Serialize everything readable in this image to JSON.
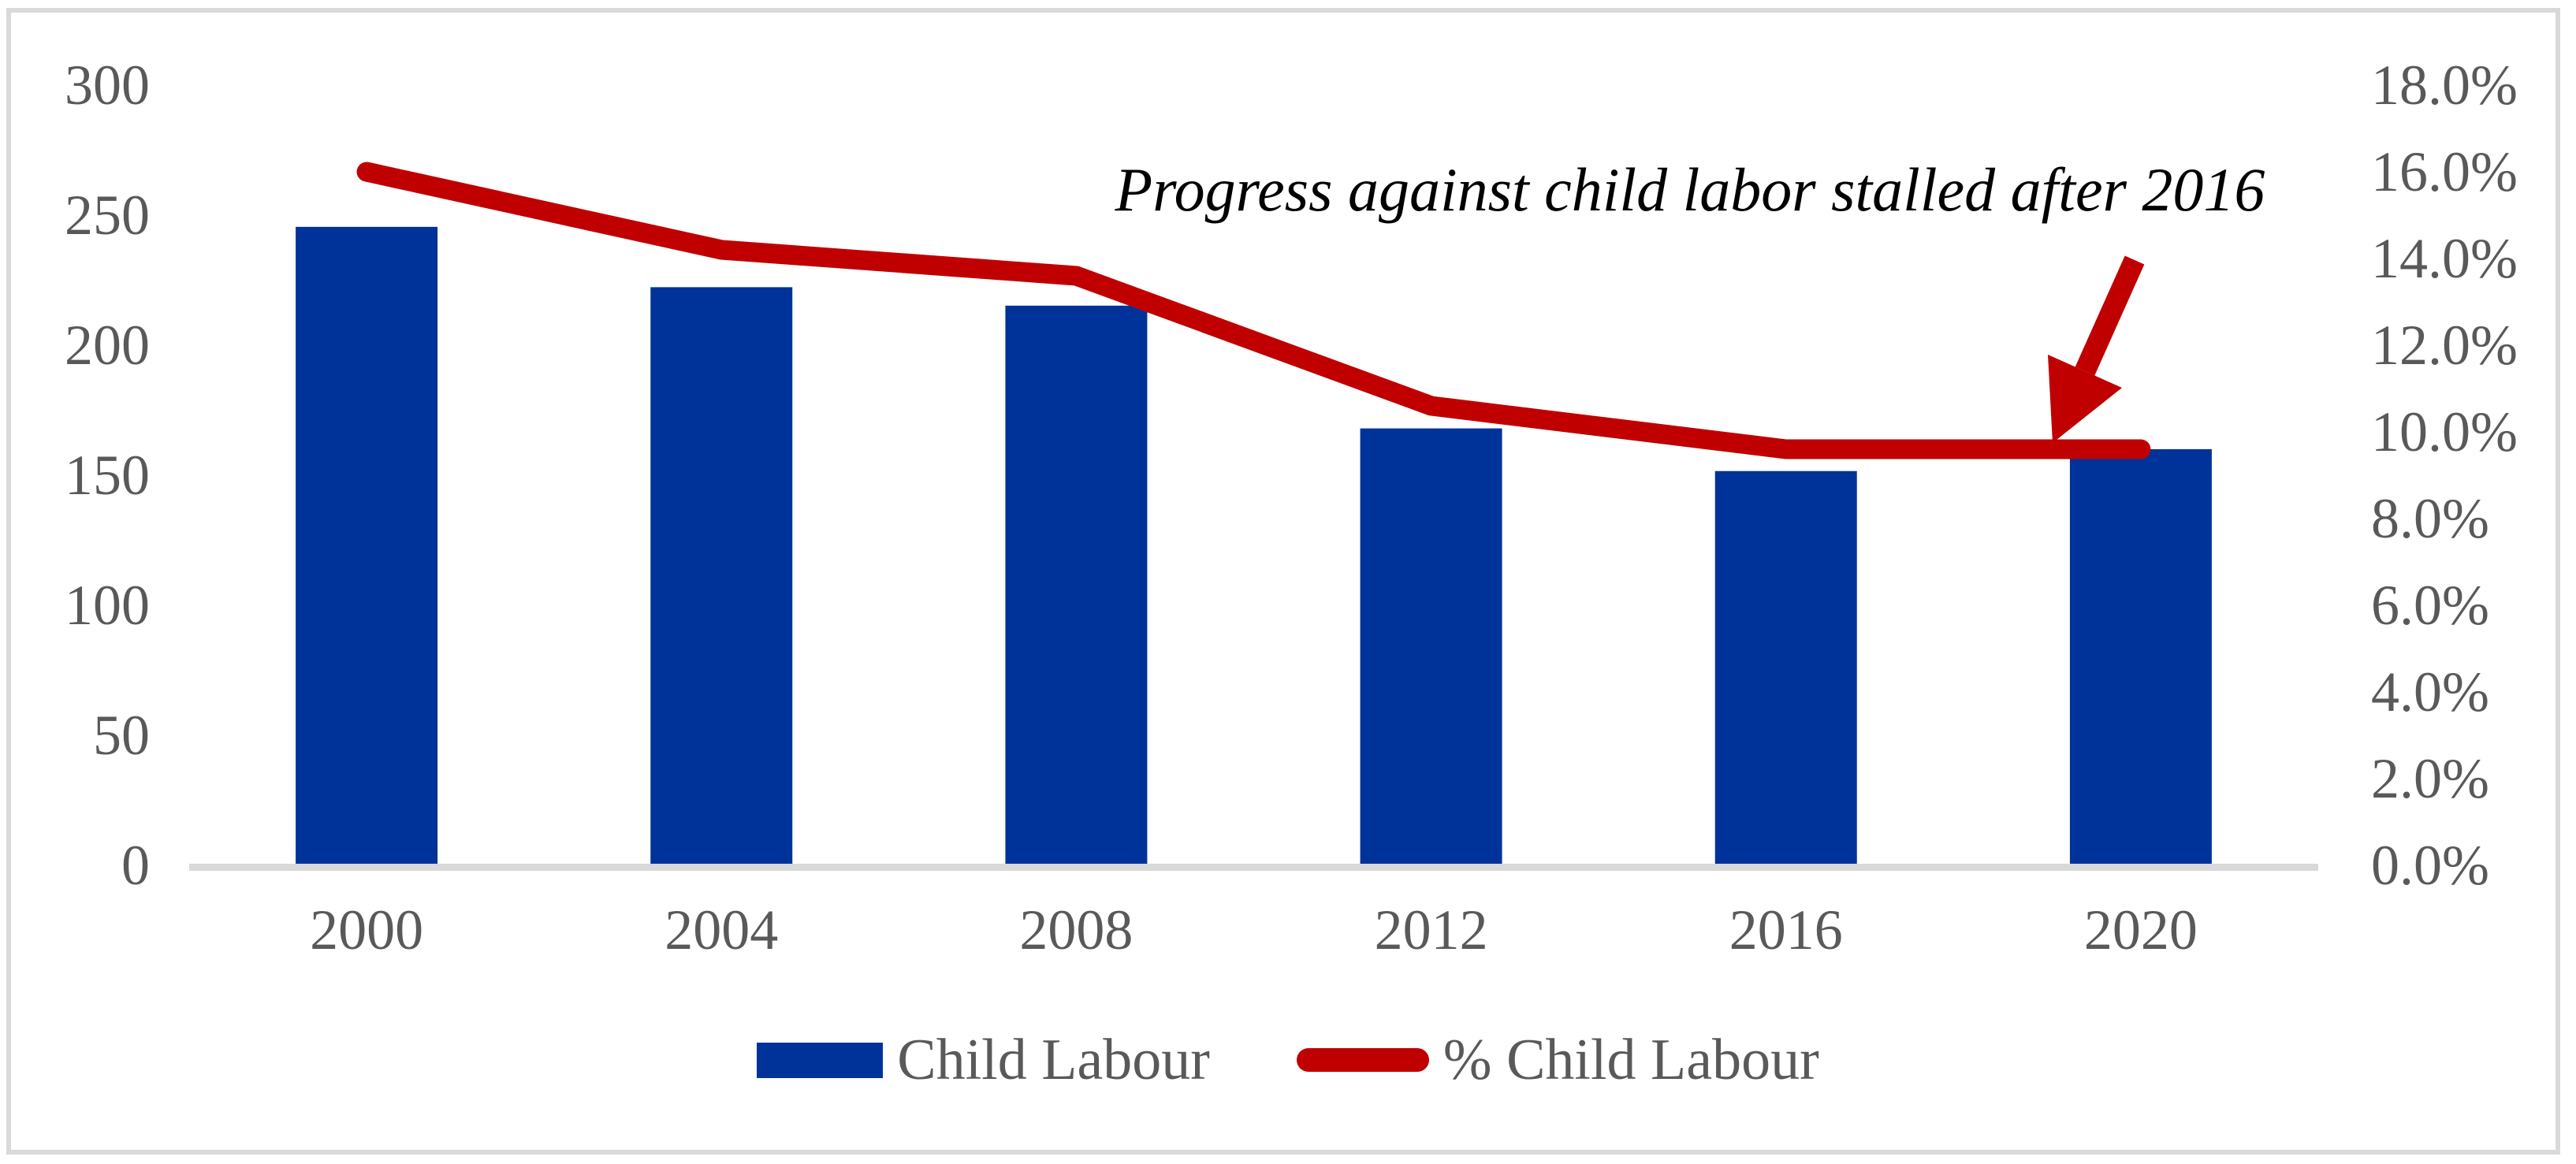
{
  "chart_data": {
    "type": "bar+line combo",
    "categories": [
      "2000",
      "2004",
      "2008",
      "2012",
      "2016",
      "2020"
    ],
    "series": [
      {
        "name": "Child Labour",
        "type": "bar",
        "axis": "left",
        "values": [
          245.5,
          222.3,
          215.2,
          168,
          151.6,
          160
        ]
      },
      {
        "name": "% Child Labour",
        "type": "line",
        "axis": "right",
        "values": [
          16.0,
          14.2,
          13.6,
          10.6,
          9.6,
          9.6
        ]
      }
    ],
    "left_axis": {
      "min": 0,
      "max": 300,
      "ticks": [
        {
          "label": "300",
          "value": 300
        },
        {
          "label": "250",
          "value": 250
        },
        {
          "label": "200",
          "value": 200
        },
        {
          "label": "150",
          "value": 150
        },
        {
          "label": "100",
          "value": 100
        },
        {
          "label": "50",
          "value": 50
        },
        {
          "label": "0",
          "value": 0
        }
      ]
    },
    "right_axis": {
      "min": 0,
      "max": 18,
      "ticks": [
        {
          "label": "18.0%",
          "value": 18
        },
        {
          "label": "16.0%",
          "value": 16
        },
        {
          "label": "14.0%",
          "value": 14
        },
        {
          "label": "12.0%",
          "value": 12
        },
        {
          "label": "10.0%",
          "value": 10
        },
        {
          "label": "8.0%",
          "value": 8
        },
        {
          "label": "6.0%",
          "value": 6
        },
        {
          "label": "4.0%",
          "value": 4
        },
        {
          "label": "2.0%",
          "value": 2
        },
        {
          "label": "0.0%",
          "value": 0
        }
      ]
    },
    "annotation": "Progress against child labor stalled after 2016",
    "legend": [
      "Child Labour",
      "% Child Labour"
    ],
    "legend_position": "bottom",
    "grid": false,
    "colors": {
      "bar": "#003399",
      "line": "#C00000",
      "axis_text": "#595959",
      "axis_line": "#D9D9D9",
      "border": "#D9D9D9",
      "annotation_text": "#000000"
    }
  }
}
